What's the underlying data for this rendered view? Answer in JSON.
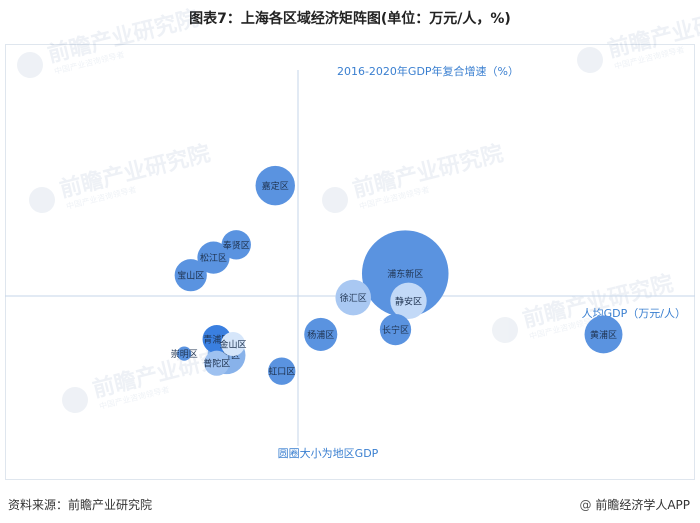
{
  "title": "图表7：上海各区域经济矩阵图(单位：万元/人，%)",
  "footer": {
    "source": "资料来源：前瞻产业研究院",
    "brand": "前瞻经济学人APP",
    "brand_symbol": "@"
  },
  "watermark": {
    "main": "前瞻产业研究院",
    "sub": "中国产业咨询领导者"
  },
  "chart_data": {
    "type": "scatter",
    "title": "图表7：上海各区域经济矩阵图(单位：万元/人，%)",
    "xlabel": "人均GDP（万元/人）",
    "ylabel": "2016-2020年GDP年复合增速（%）",
    "size_note": "圆圈大小为地区GDP",
    "grid": false,
    "bubbles": [
      {
        "name": "嘉定区",
        "x": -3.5,
        "y": 6.9,
        "size": 2.7,
        "color": "#5a93e0"
      },
      {
        "name": "奉贤区",
        "x": -9.5,
        "y": 3.2,
        "size": 1.5,
        "color": "#5a93e0"
      },
      {
        "name": "松江区",
        "x": -13.0,
        "y": 2.4,
        "size": 1.8,
        "color": "#5a93e0"
      },
      {
        "name": "宝山区",
        "x": -16.5,
        "y": 1.3,
        "size": 1.8,
        "color": "#5a93e0"
      },
      {
        "name": "浦东新区",
        "x": 16.5,
        "y": 1.4,
        "size": 13.0,
        "color": "#5a93e0"
      },
      {
        "name": "徐汇区",
        "x": 8.5,
        "y": -0.1,
        "size": 2.2,
        "color": "#a9c8f2"
      },
      {
        "name": "静安区",
        "x": 17.0,
        "y": -0.3,
        "size": 2.3,
        "color": "#c2d9f7"
      },
      {
        "name": "长宁区",
        "x": 15.0,
        "y": -2.1,
        "size": 1.7,
        "color": "#5a93e0"
      },
      {
        "name": "杨浦区",
        "x": 3.5,
        "y": -2.4,
        "size": 1.9,
        "color": "#5a93e0"
      },
      {
        "name": "黄浦区",
        "x": 47.0,
        "y": -2.4,
        "size": 2.5,
        "color": "#5a93e0"
      },
      {
        "name": "青浦区",
        "x": -12.5,
        "y": -2.7,
        "size": 1.4,
        "color": "#3a7fe0"
      },
      {
        "name": "金山区",
        "x": -10.0,
        "y": -3.0,
        "size": 1.0,
        "color": "#d6e6fa"
      },
      {
        "name": "崇明区",
        "x": -17.5,
        "y": -3.6,
        "size": 0.35,
        "color": "#5a93e0"
      },
      {
        "name": "闵行区",
        "x": -11.0,
        "y": -3.7,
        "size": 2.5,
        "color": "#88b2ea"
      },
      {
        "name": "普陀区",
        "x": -12.5,
        "y": -4.2,
        "size": 1.1,
        "color": "#9ec1f0"
      },
      {
        "name": "虹口区",
        "x": -2.5,
        "y": -4.7,
        "size": 1.3,
        "color": "#5a93e0"
      }
    ]
  }
}
